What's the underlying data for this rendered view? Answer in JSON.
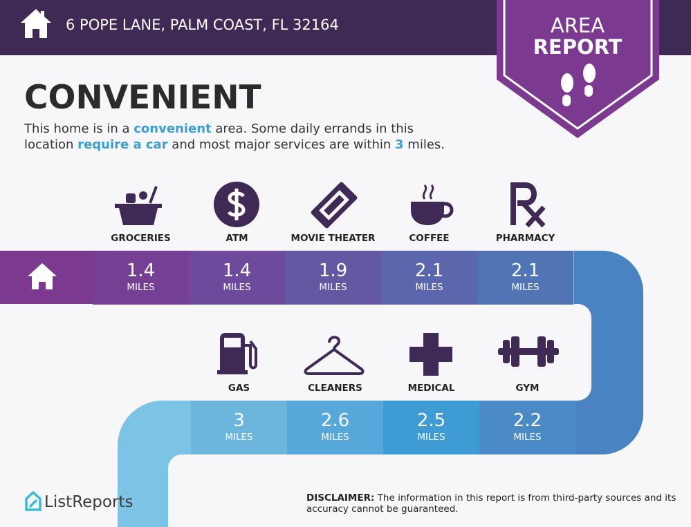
{
  "header": {
    "address": "6 POPE LANE, PALM COAST, FL 32164"
  },
  "badge": {
    "line1": "AREA",
    "line2": "REPORT"
  },
  "heading": "CONVENIENT",
  "description": {
    "parts": [
      "This home is in a ",
      "convenient",
      " area. Some daily errands in this",
      "location ",
      "require a car",
      " and most major services are within ",
      "3",
      " miles."
    ]
  },
  "rows": [
    {
      "services": [
        {
          "name": "GROCERIES",
          "distance": 1.4,
          "unit": "MILES"
        },
        {
          "name": "ATM",
          "distance": 1.4,
          "unit": "MILES"
        },
        {
          "name": "MOVIE THEATER",
          "distance": 1.9,
          "unit": "MILES"
        },
        {
          "name": "COFFEE",
          "distance": 2.1,
          "unit": "MILES"
        },
        {
          "name": "PHARMACY",
          "distance": 2.1,
          "unit": "MILES"
        }
      ]
    },
    {
      "services": [
        {
          "name": "GAS",
          "distance": 3,
          "unit": "MILES"
        },
        {
          "name": "CLEANERS",
          "distance": 2.6,
          "unit": "MILES"
        },
        {
          "name": "MEDICAL",
          "distance": 2.5,
          "unit": "MILES"
        },
        {
          "name": "GYM",
          "distance": 2.2,
          "unit": "MILES"
        }
      ]
    }
  ],
  "footer": {
    "brand": "ListReports",
    "disclaimer_label": "DISCLAIMER:",
    "disclaimer_lines": [
      " The information in this report is from third-party sources and its",
      "accuracy cannot be guaranteed."
    ]
  }
}
